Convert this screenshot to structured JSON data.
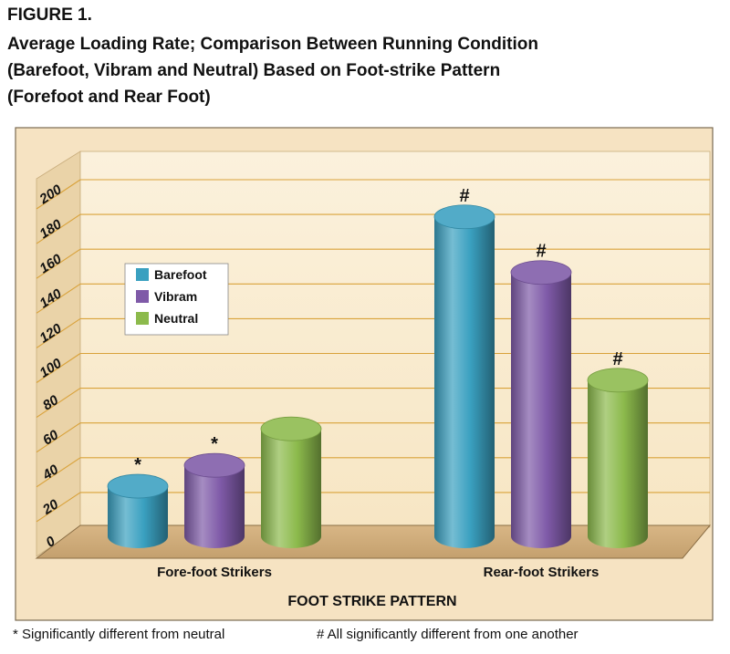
{
  "figure_label": "FIGURE 1.",
  "title_lines": [
    "Average Loading Rate; Comparison Between Running Condition",
    "(Barefoot, Vibram and Neutral) Based on Foot-strike Pattern",
    "(Forefoot and Rear Foot)"
  ],
  "footnotes": {
    "star": "* Significantly different from neutral",
    "hash": "# All significantly different from one another"
  },
  "chart_data": {
    "type": "bar",
    "title": "",
    "xlabel": "FOOT STRIKE PATTERN",
    "ylabel": "",
    "categories": [
      "Fore-foot Strikers",
      "Rear-foot Strikers"
    ],
    "ylim": [
      0,
      200
    ],
    "yticks": [
      0,
      20,
      40,
      60,
      80,
      100,
      120,
      140,
      160,
      180,
      200
    ],
    "grid": true,
    "legend_position": "upper-left",
    "series": [
      {
        "name": "Barefoot",
        "color": "#3aa0c0",
        "values": [
          32,
          187
        ],
        "markers": [
          "*",
          "#"
        ]
      },
      {
        "name": "Vibram",
        "color": "#7f5aa8",
        "values": [
          44,
          155
        ],
        "markers": [
          "*",
          "#"
        ]
      },
      {
        "name": "Neutral",
        "color": "#8cba4c",
        "values": [
          65,
          93
        ],
        "markers": [
          "",
          "#"
        ]
      }
    ]
  }
}
